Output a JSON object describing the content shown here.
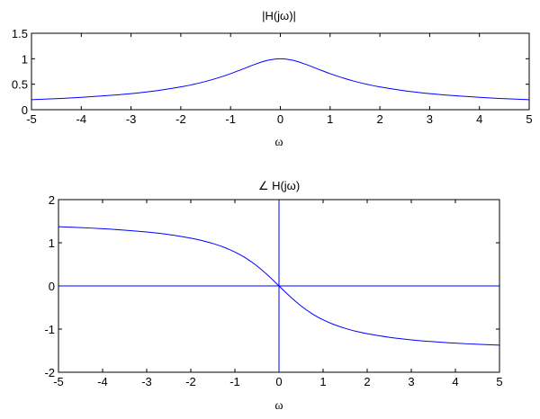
{
  "chart_data": [
    {
      "type": "line",
      "title": "|H(jω)|",
      "xlabel": "ω",
      "ylabel": "",
      "xlim": [
        -5,
        5
      ],
      "ylim": [
        0,
        1.5
      ],
      "xticks": [
        "-5",
        "-4",
        "-3",
        "-2",
        "-1",
        "0",
        "1",
        "2",
        "3",
        "4",
        "5"
      ],
      "yticks": [
        "0",
        "0.5",
        "1",
        "1.5"
      ],
      "grid": false,
      "series": [
        {
          "color": "#0000ff",
          "x": [
            -5,
            -4.5,
            -4,
            -3.5,
            -3,
            -2.5,
            -2,
            -1.75,
            -1.5,
            -1.25,
            -1,
            -0.75,
            -0.5,
            -0.25,
            0,
            0.25,
            0.5,
            0.75,
            1,
            1.25,
            1.5,
            1.75,
            2,
            2.5,
            3,
            3.5,
            4,
            4.5,
            5
          ],
          "values": [
            0.196,
            0.217,
            0.243,
            0.275,
            0.316,
            0.371,
            0.447,
            0.496,
            0.555,
            0.625,
            0.707,
            0.8,
            0.894,
            0.97,
            1.0,
            0.97,
            0.894,
            0.8,
            0.707,
            0.625,
            0.555,
            0.496,
            0.447,
            0.371,
            0.316,
            0.275,
            0.243,
            0.217,
            0.196
          ]
        }
      ]
    },
    {
      "type": "line",
      "title": "∠ H(jω)",
      "xlabel": "ω",
      "ylabel": "",
      "xlim": [
        -5,
        5
      ],
      "ylim": [
        -2,
        2
      ],
      "xticks": [
        "-5",
        "-4",
        "-3",
        "-2",
        "-1",
        "0",
        "1",
        "2",
        "3",
        "4",
        "5"
      ],
      "yticks": [
        "-2",
        "-1",
        "0",
        "1",
        "2"
      ],
      "grid": false,
      "reference_lines": {
        "x": 0,
        "y": 0
      },
      "series": [
        {
          "color": "#0000ff",
          "x": [
            -5,
            -4.5,
            -4,
            -3.5,
            -3,
            -2.5,
            -2,
            -1.75,
            -1.5,
            -1.25,
            -1,
            -0.75,
            -0.5,
            -0.25,
            0,
            0.25,
            0.5,
            0.75,
            1,
            1.25,
            1.5,
            1.75,
            2,
            2.5,
            3,
            3.5,
            4,
            4.5,
            5
          ],
          "values": [
            1.373,
            1.352,
            1.326,
            1.292,
            1.249,
            1.19,
            1.107,
            1.052,
            0.983,
            0.896,
            0.785,
            0.644,
            0.464,
            0.245,
            0,
            -0.245,
            -0.464,
            -0.644,
            -0.785,
            -0.896,
            -0.983,
            -1.052,
            -1.107,
            -1.19,
            -1.249,
            -1.292,
            -1.326,
            -1.352,
            -1.373
          ]
        }
      ]
    }
  ]
}
